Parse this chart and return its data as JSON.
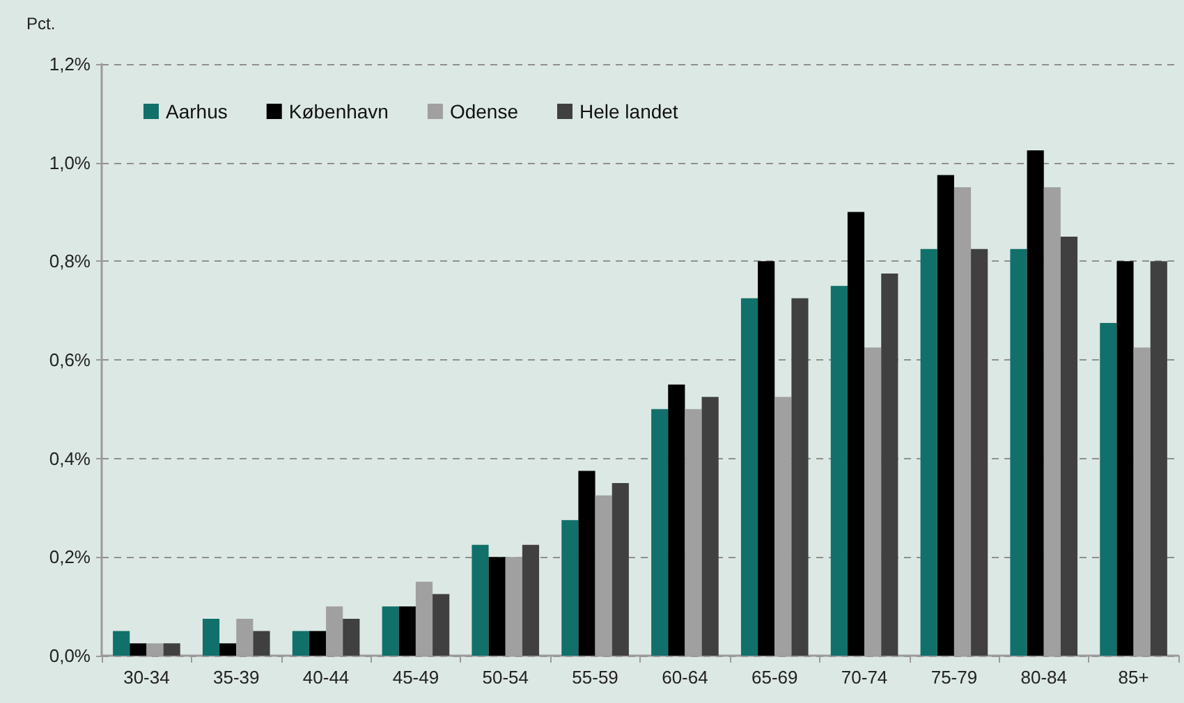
{
  "chart_data": {
    "type": "bar",
    "ylabel": "Pct.",
    "categories": [
      "30-34",
      "35-39",
      "40-44",
      "45-49",
      "50-54",
      "55-59",
      "60-64",
      "65-69",
      "70-74",
      "75-79",
      "80-84",
      "85+"
    ],
    "series": [
      {
        "name": "Aarhus",
        "color": "#11706a",
        "values": [
          0.05,
          0.075,
          0.05,
          0.1,
          0.225,
          0.275,
          0.5,
          0.725,
          0.75,
          0.825,
          0.825,
          0.675
        ]
      },
      {
        "name": "København",
        "color": "#000000",
        "values": [
          0.025,
          0.025,
          0.05,
          0.1,
          0.2,
          0.375,
          0.55,
          0.8,
          0.9,
          0.975,
          1.025,
          0.8
        ]
      },
      {
        "name": "Odense",
        "color": "#a0a0a0",
        "values": [
          0.025,
          0.075,
          0.1,
          0.15,
          0.2,
          0.325,
          0.5,
          0.525,
          0.625,
          0.95,
          0.95,
          0.625
        ]
      },
      {
        "name": "Hele landet",
        "color": "#404040",
        "values": [
          0.025,
          0.05,
          0.075,
          0.125,
          0.225,
          0.35,
          0.525,
          0.725,
          0.775,
          0.825,
          0.85,
          0.8
        ]
      }
    ],
    "ylim": [
      0,
      1.2
    ],
    "yticks": [
      {
        "value": 0,
        "label": "0,0%"
      },
      {
        "value": 0.2,
        "label": "0,2%"
      },
      {
        "value": 0.4,
        "label": "0,4%"
      },
      {
        "value": 0.6,
        "label": "0,6%"
      },
      {
        "value": 0.8,
        "label": "0,8%"
      },
      {
        "value": 1.0,
        "label": "1,0%"
      },
      {
        "value": 1.2,
        "label": "1,2%"
      }
    ],
    "grid": "y",
    "legend": "top left"
  }
}
